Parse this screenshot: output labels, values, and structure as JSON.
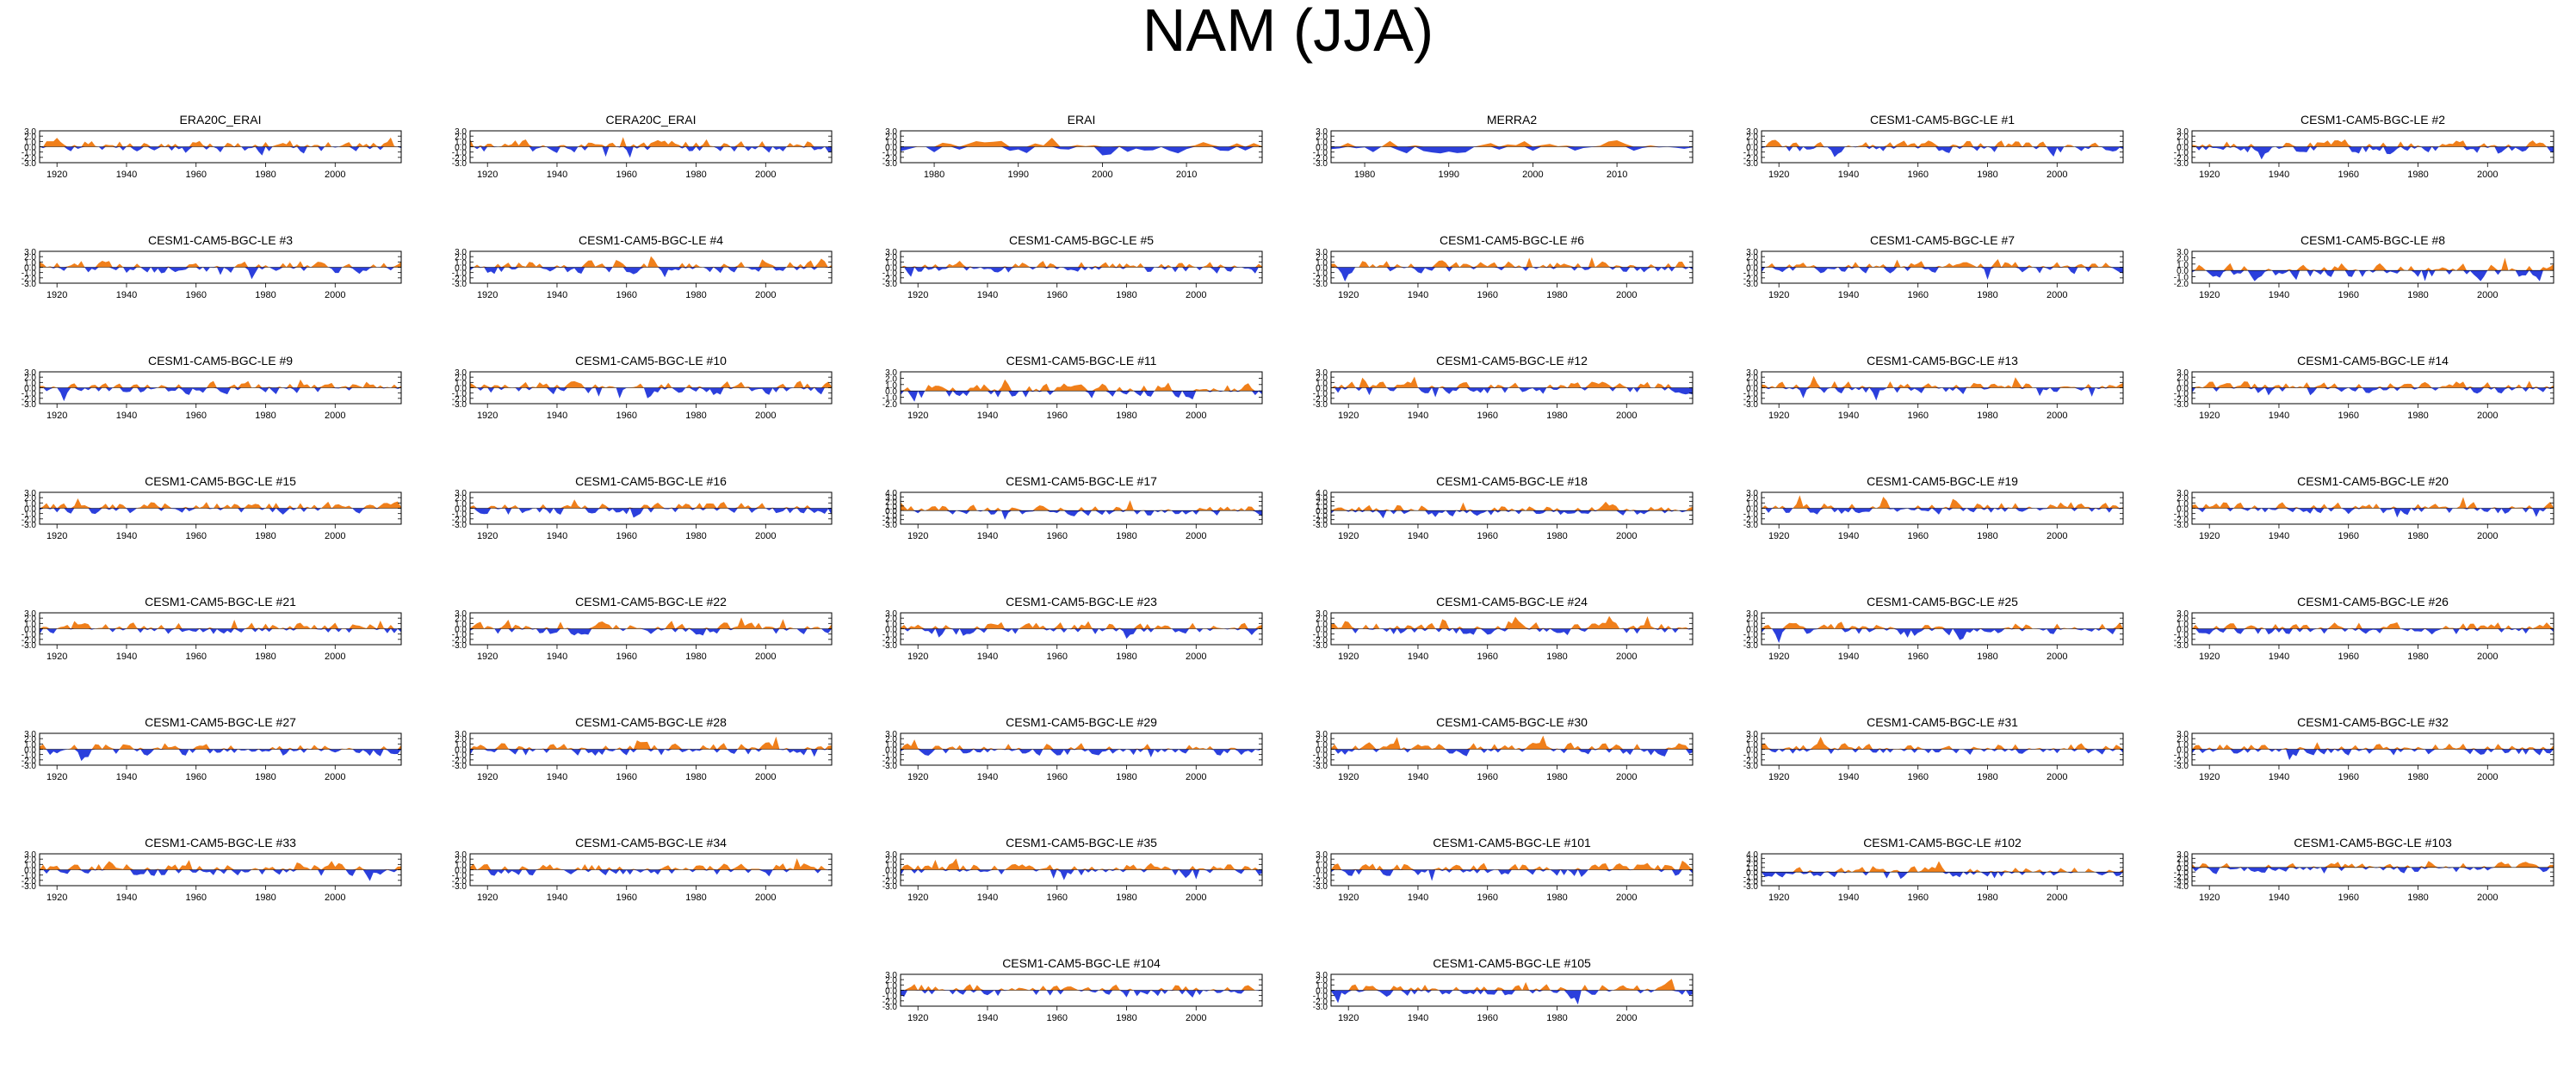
{
  "title": "NAM (JJA)",
  "colors": {
    "positive": "#f07f1a",
    "negative": "#2b3fdc",
    "frame": "#000000"
  },
  "panels": [
    {
      "title": "ERA20C_ERAI",
      "xticks": [
        "1920",
        "1940",
        "1960",
        "1980",
        "2000"
      ],
      "yticks": [
        "3.0",
        "2.0",
        "1.0",
        "0.0",
        "-1.0",
        "-2.0",
        "-3.0"
      ],
      "x_range": [
        1915,
        2019
      ],
      "ylim": [
        -3,
        3
      ],
      "seed": 11
    },
    {
      "title": "CERA20C_ERAI",
      "xticks": [
        "1920",
        "1940",
        "1960",
        "1980",
        "2000"
      ],
      "yticks": [
        "3.0",
        "2.0",
        "1.0",
        "0.0",
        "-1.0",
        "-2.0",
        "-3.0"
      ],
      "x_range": [
        1915,
        2019
      ],
      "ylim": [
        -3,
        3
      ],
      "seed": 12
    },
    {
      "title": "ERAI",
      "xticks": [
        "1980",
        "1990",
        "2000",
        "2010"
      ],
      "yticks": [
        "3.0",
        "2.0",
        "1.0",
        "0.0",
        "-1.0",
        "-2.0",
        "-3.0"
      ],
      "x_range": [
        1976,
        2019
      ],
      "ylim": [
        -3,
        3
      ],
      "seed": 13
    },
    {
      "title": "MERRA2",
      "xticks": [
        "1980",
        "1990",
        "2000",
        "2010"
      ],
      "yticks": [
        "3.0",
        "2.0",
        "1.0",
        "0.0",
        "-1.0",
        "-2.0",
        "-3.0"
      ],
      "x_range": [
        1976,
        2019
      ],
      "ylim": [
        -3,
        3
      ],
      "seed": 14
    },
    {
      "title": "CESM1-CAM5-BGC-LE #1",
      "xticks": [
        "1920",
        "1940",
        "1960",
        "1980",
        "2000"
      ],
      "yticks": [
        "3.0",
        "2.0",
        "1.0",
        "0.0",
        "-1.0",
        "-2.0",
        "-3.0"
      ],
      "x_range": [
        1915,
        2019
      ],
      "ylim": [
        -3,
        3
      ],
      "seed": 21
    },
    {
      "title": "CESM1-CAM5-BGC-LE #2",
      "xticks": [
        "1920",
        "1940",
        "1960",
        "1980",
        "2000"
      ],
      "yticks": [
        "3.0",
        "2.0",
        "1.0",
        "0.0",
        "-1.0",
        "-2.0",
        "-3.0"
      ],
      "x_range": [
        1915,
        2019
      ],
      "ylim": [
        -3,
        3
      ],
      "seed": 22
    },
    {
      "title": "CESM1-CAM5-BGC-LE #3",
      "xticks": [
        "1920",
        "1940",
        "1960",
        "1980",
        "2000"
      ],
      "yticks": [
        "3.0",
        "2.0",
        "1.0",
        "0.0",
        "-1.0",
        "-2.0",
        "-3.0"
      ],
      "x_range": [
        1915,
        2019
      ],
      "ylim": [
        -3,
        3
      ],
      "seed": 23
    },
    {
      "title": "CESM1-CAM5-BGC-LE #4",
      "xticks": [
        "1920",
        "1940",
        "1960",
        "1980",
        "2000"
      ],
      "yticks": [
        "3.0",
        "2.0",
        "1.0",
        "0.0",
        "-1.0",
        "-2.0",
        "-3.0"
      ],
      "x_range": [
        1915,
        2019
      ],
      "ylim": [
        -3,
        3
      ],
      "seed": 24
    },
    {
      "title": "CESM1-CAM5-BGC-LE #5",
      "xticks": [
        "1920",
        "1940",
        "1960",
        "1980",
        "2000"
      ],
      "yticks": [
        "3.0",
        "2.0",
        "1.0",
        "0.0",
        "-1.0",
        "-2.0",
        "-3.0"
      ],
      "x_range": [
        1915,
        2019
      ],
      "ylim": [
        -3,
        3
      ],
      "seed": 25
    },
    {
      "title": "CESM1-CAM5-BGC-LE #6",
      "xticks": [
        "1920",
        "1940",
        "1960",
        "1980",
        "2000"
      ],
      "yticks": [
        "3.0",
        "2.0",
        "1.0",
        "0.0",
        "-1.0",
        "-2.0",
        "-3.0"
      ],
      "x_range": [
        1915,
        2019
      ],
      "ylim": [
        -3,
        3
      ],
      "seed": 26
    },
    {
      "title": "CESM1-CAM5-BGC-LE #7",
      "xticks": [
        "1920",
        "1940",
        "1960",
        "1980",
        "2000"
      ],
      "yticks": [
        "3.0",
        "2.0",
        "1.0",
        "0.0",
        "-1.0",
        "-2.0",
        "-3.0"
      ],
      "x_range": [
        1915,
        2019
      ],
      "ylim": [
        -3,
        3
      ],
      "seed": 27
    },
    {
      "title": "CESM1-CAM5-BGC-LE #8",
      "xticks": [
        "1920",
        "1940",
        "1960",
        "1980",
        "2000"
      ],
      "yticks": [
        "3.0",
        "2.0",
        "1.0",
        "0.0",
        "-1.0",
        "-2.0"
      ],
      "x_range": [
        1915,
        2019
      ],
      "ylim": [
        -2,
        3
      ],
      "seed": 28
    },
    {
      "title": "CESM1-CAM5-BGC-LE #9",
      "xticks": [
        "1920",
        "1940",
        "1960",
        "1980",
        "2000"
      ],
      "yticks": [
        "3.0",
        "2.0",
        "1.0",
        "0.0",
        "-1.0",
        "-2.0",
        "-3.0"
      ],
      "x_range": [
        1915,
        2019
      ],
      "ylim": [
        -3,
        3
      ],
      "seed": 29
    },
    {
      "title": "CESM1-CAM5-BGC-LE #10",
      "xticks": [
        "1920",
        "1940",
        "1960",
        "1980",
        "2000"
      ],
      "yticks": [
        "3.0",
        "2.0",
        "1.0",
        "0.0",
        "-1.0",
        "-2.0",
        "-3.0"
      ],
      "x_range": [
        1915,
        2019
      ],
      "ylim": [
        -3,
        3
      ],
      "seed": 30
    },
    {
      "title": "CESM1-CAM5-BGC-LE #11",
      "xticks": [
        "1920",
        "1940",
        "1960",
        "1980",
        "2000"
      ],
      "yticks": [
        "3.0",
        "2.0",
        "1.0",
        "0.0",
        "-1.0",
        "-2.0"
      ],
      "x_range": [
        1915,
        2019
      ],
      "ylim": [
        -2,
        3
      ],
      "seed": 31
    },
    {
      "title": "CESM1-CAM5-BGC-LE #12",
      "xticks": [
        "1920",
        "1940",
        "1960",
        "1980",
        "2000"
      ],
      "yticks": [
        "3.0",
        "2.0",
        "1.0",
        "0.0",
        "-1.0",
        "-2.0",
        "-3.0"
      ],
      "x_range": [
        1915,
        2019
      ],
      "ylim": [
        -3,
        3
      ],
      "seed": 32
    },
    {
      "title": "CESM1-CAM5-BGC-LE #13",
      "xticks": [
        "1920",
        "1940",
        "1960",
        "1980",
        "2000"
      ],
      "yticks": [
        "3.0",
        "2.0",
        "1.0",
        "0.0",
        "-1.0",
        "-2.0",
        "-3.0"
      ],
      "x_range": [
        1915,
        2019
      ],
      "ylim": [
        -3,
        3
      ],
      "seed": 33
    },
    {
      "title": "CESM1-CAM5-BGC-LE #14",
      "xticks": [
        "1920",
        "1940",
        "1960",
        "1980",
        "2000"
      ],
      "yticks": [
        "3.0",
        "2.0",
        "1.0",
        "0.0",
        "-1.0",
        "-2.0",
        "-3.0"
      ],
      "x_range": [
        1915,
        2019
      ],
      "ylim": [
        -3,
        3
      ],
      "seed": 34
    },
    {
      "title": "CESM1-CAM5-BGC-LE #15",
      "xticks": [
        "1920",
        "1940",
        "1960",
        "1980",
        "2000"
      ],
      "yticks": [
        "3.0",
        "2.0",
        "1.0",
        "0.0",
        "-1.0",
        "-2.0",
        "-3.0"
      ],
      "x_range": [
        1915,
        2019
      ],
      "ylim": [
        -3,
        3
      ],
      "seed": 35
    },
    {
      "title": "CESM1-CAM5-BGC-LE #16",
      "xticks": [
        "1920",
        "1940",
        "1960",
        "1980",
        "2000"
      ],
      "yticks": [
        "3.0",
        "2.0",
        "1.0",
        "0.0",
        "-1.0",
        "-2.0",
        "-3.0"
      ],
      "x_range": [
        1915,
        2019
      ],
      "ylim": [
        -3,
        3
      ],
      "seed": 36
    },
    {
      "title": "CESM1-CAM5-BGC-LE #17",
      "xticks": [
        "1920",
        "1940",
        "1960",
        "1980",
        "2000"
      ],
      "yticks": [
        "4.0",
        "3.0",
        "2.0",
        "1.0",
        "0.0",
        "-1.0",
        "-2.0",
        "-3.0"
      ],
      "x_range": [
        1915,
        2019
      ],
      "ylim": [
        -3,
        4
      ],
      "seed": 37
    },
    {
      "title": "CESM1-CAM5-BGC-LE #18",
      "xticks": [
        "1920",
        "1940",
        "1960",
        "1980",
        "2000"
      ],
      "yticks": [
        "4.0",
        "3.0",
        "2.0",
        "1.0",
        "0.0",
        "-1.0",
        "-2.0",
        "-3.0"
      ],
      "x_range": [
        1915,
        2019
      ],
      "ylim": [
        -3,
        4
      ],
      "seed": 38
    },
    {
      "title": "CESM1-CAM5-BGC-LE #19",
      "xticks": [
        "1920",
        "1940",
        "1960",
        "1980",
        "2000"
      ],
      "yticks": [
        "3.0",
        "2.0",
        "1.0",
        "0.0",
        "-1.0",
        "-2.0",
        "-3.0"
      ],
      "x_range": [
        1915,
        2019
      ],
      "ylim": [
        -3,
        3
      ],
      "seed": 39
    },
    {
      "title": "CESM1-CAM5-BGC-LE #20",
      "xticks": [
        "1920",
        "1940",
        "1960",
        "1980",
        "2000"
      ],
      "yticks": [
        "3.0",
        "2.0",
        "1.0",
        "0.0",
        "-1.0",
        "-2.0",
        "-3.0"
      ],
      "x_range": [
        1915,
        2019
      ],
      "ylim": [
        -3,
        3
      ],
      "seed": 40
    },
    {
      "title": "CESM1-CAM5-BGC-LE #21",
      "xticks": [
        "1920",
        "1940",
        "1960",
        "1980",
        "2000"
      ],
      "yticks": [
        "3.0",
        "2.0",
        "1.0",
        "0.0",
        "-1.0",
        "-2.0",
        "-3.0"
      ],
      "x_range": [
        1915,
        2019
      ],
      "ylim": [
        -3,
        3
      ],
      "seed": 41
    },
    {
      "title": "CESM1-CAM5-BGC-LE #22",
      "xticks": [
        "1920",
        "1940",
        "1960",
        "1980",
        "2000"
      ],
      "yticks": [
        "3.0",
        "2.0",
        "1.0",
        "0.0",
        "-1.0",
        "-2.0",
        "-3.0"
      ],
      "x_range": [
        1915,
        2019
      ],
      "ylim": [
        -3,
        3
      ],
      "seed": 42
    },
    {
      "title": "CESM1-CAM5-BGC-LE #23",
      "xticks": [
        "1920",
        "1940",
        "1960",
        "1980",
        "2000"
      ],
      "yticks": [
        "3.0",
        "2.0",
        "1.0",
        "0.0",
        "-1.0",
        "-2.0",
        "-3.0"
      ],
      "x_range": [
        1915,
        2019
      ],
      "ylim": [
        -3,
        3
      ],
      "seed": 43
    },
    {
      "title": "CESM1-CAM5-BGC-LE #24",
      "xticks": [
        "1920",
        "1940",
        "1960",
        "1980",
        "2000"
      ],
      "yticks": [
        "3.0",
        "2.0",
        "1.0",
        "0.0",
        "-1.0",
        "-2.0",
        "-3.0"
      ],
      "x_range": [
        1915,
        2019
      ],
      "ylim": [
        -3,
        3
      ],
      "seed": 44
    },
    {
      "title": "CESM1-CAM5-BGC-LE #25",
      "xticks": [
        "1920",
        "1940",
        "1960",
        "1980",
        "2000"
      ],
      "yticks": [
        "3.0",
        "2.0",
        "1.0",
        "0.0",
        "-1.0",
        "-2.0",
        "-3.0"
      ],
      "x_range": [
        1915,
        2019
      ],
      "ylim": [
        -3,
        3
      ],
      "seed": 45
    },
    {
      "title": "CESM1-CAM5-BGC-LE #26",
      "xticks": [
        "1920",
        "1940",
        "1960",
        "1980",
        "2000"
      ],
      "yticks": [
        "3.0",
        "2.0",
        "1.0",
        "0.0",
        "-1.0",
        "-2.0",
        "-3.0"
      ],
      "x_range": [
        1915,
        2019
      ],
      "ylim": [
        -3,
        3
      ],
      "seed": 46
    },
    {
      "title": "CESM1-CAM5-BGC-LE #27",
      "xticks": [
        "1920",
        "1940",
        "1960",
        "1980",
        "2000"
      ],
      "yticks": [
        "3.0",
        "2.0",
        "1.0",
        "0.0",
        "-1.0",
        "-2.0",
        "-3.0"
      ],
      "x_range": [
        1915,
        2019
      ],
      "ylim": [
        -3,
        3
      ],
      "seed": 47
    },
    {
      "title": "CESM1-CAM5-BGC-LE #28",
      "xticks": [
        "1920",
        "1940",
        "1960",
        "1980",
        "2000"
      ],
      "yticks": [
        "3.0",
        "2.0",
        "1.0",
        "0.0",
        "-1.0",
        "-2.0",
        "-3.0"
      ],
      "x_range": [
        1915,
        2019
      ],
      "ylim": [
        -3,
        3
      ],
      "seed": 48
    },
    {
      "title": "CESM1-CAM5-BGC-LE #29",
      "xticks": [
        "1920",
        "1940",
        "1960",
        "1980",
        "2000"
      ],
      "yticks": [
        "3.0",
        "2.0",
        "1.0",
        "0.0",
        "-1.0",
        "-2.0",
        "-3.0"
      ],
      "x_range": [
        1915,
        2019
      ],
      "ylim": [
        -3,
        3
      ],
      "seed": 49
    },
    {
      "title": "CESM1-CAM5-BGC-LE #30",
      "xticks": [
        "1920",
        "1940",
        "1960",
        "1980",
        "2000"
      ],
      "yticks": [
        "3.0",
        "2.0",
        "1.0",
        "0.0",
        "-1.0",
        "-2.0",
        "-3.0"
      ],
      "x_range": [
        1915,
        2019
      ],
      "ylim": [
        -3,
        3
      ],
      "seed": 50
    },
    {
      "title": "CESM1-CAM5-BGC-LE #31",
      "xticks": [
        "1920",
        "1940",
        "1960",
        "1980",
        "2000"
      ],
      "yticks": [
        "3.0",
        "2.0",
        "1.0",
        "0.0",
        "-1.0",
        "-2.0",
        "-3.0"
      ],
      "x_range": [
        1915,
        2019
      ],
      "ylim": [
        -3,
        3
      ],
      "seed": 51
    },
    {
      "title": "CESM1-CAM5-BGC-LE #32",
      "xticks": [
        "1920",
        "1940",
        "1960",
        "1980",
        "2000"
      ],
      "yticks": [
        "3.0",
        "2.0",
        "1.0",
        "0.0",
        "-1.0",
        "-2.0",
        "-3.0"
      ],
      "x_range": [
        1915,
        2019
      ],
      "ylim": [
        -3,
        3
      ],
      "seed": 52
    },
    {
      "title": "CESM1-CAM5-BGC-LE #33",
      "xticks": [
        "1920",
        "1940",
        "1960",
        "1980",
        "2000"
      ],
      "yticks": [
        "3.0",
        "2.0",
        "1.0",
        "0.0",
        "-1.0",
        "-2.0",
        "-3.0"
      ],
      "x_range": [
        1915,
        2019
      ],
      "ylim": [
        -3,
        3
      ],
      "seed": 53
    },
    {
      "title": "CESM1-CAM5-BGC-LE #34",
      "xticks": [
        "1920",
        "1940",
        "1960",
        "1980",
        "2000"
      ],
      "yticks": [
        "3.0",
        "2.0",
        "1.0",
        "0.0",
        "-1.0",
        "-2.0",
        "-3.0"
      ],
      "x_range": [
        1915,
        2019
      ],
      "ylim": [
        -3,
        3
      ],
      "seed": 54
    },
    {
      "title": "CESM1-CAM5-BGC-LE #35",
      "xticks": [
        "1920",
        "1940",
        "1960",
        "1980",
        "2000"
      ],
      "yticks": [
        "3.0",
        "2.0",
        "1.0",
        "0.0",
        "-1.0",
        "-2.0",
        "-3.0"
      ],
      "x_range": [
        1915,
        2019
      ],
      "ylim": [
        -3,
        3
      ],
      "seed": 55
    },
    {
      "title": "CESM1-CAM5-BGC-LE #101",
      "xticks": [
        "1920",
        "1940",
        "1960",
        "1980",
        "2000"
      ],
      "yticks": [
        "3.0",
        "2.0",
        "1.0",
        "0.0",
        "-1.0",
        "-2.0",
        "-3.0"
      ],
      "x_range": [
        1915,
        2019
      ],
      "ylim": [
        -3,
        3
      ],
      "seed": 56
    },
    {
      "title": "CESM1-CAM5-BGC-LE #102",
      "xticks": [
        "1920",
        "1940",
        "1960",
        "1980",
        "2000"
      ],
      "yticks": [
        "4.0",
        "3.0",
        "2.0",
        "1.0",
        "0.0",
        "-1.0",
        "-2.0",
        "-3.0"
      ],
      "x_range": [
        1915,
        2019
      ],
      "ylim": [
        -3,
        4
      ],
      "seed": 57
    },
    {
      "title": "CESM1-CAM5-BGC-LE #103",
      "xticks": [
        "1920",
        "1940",
        "1960",
        "1980",
        "2000"
      ],
      "yticks": [
        "3.0",
        "2.0",
        "1.0",
        "0.0",
        "-1.0",
        "-2.0",
        "-3.0",
        "-4.0"
      ],
      "x_range": [
        1915,
        2019
      ],
      "ylim": [
        -4,
        3
      ],
      "seed": 58
    },
    {
      "title": "CESM1-CAM5-BGC-LE #104",
      "xticks": [
        "1920",
        "1940",
        "1960",
        "1980",
        "2000"
      ],
      "yticks": [
        "3.0",
        "2.0",
        "1.0",
        "0.0",
        "-1.0",
        "-2.0",
        "-3.0"
      ],
      "x_range": [
        1915,
        2019
      ],
      "ylim": [
        -3,
        3
      ],
      "seed": 59
    },
    {
      "title": "CESM1-CAM5-BGC-LE #105",
      "xticks": [
        "1920",
        "1940",
        "1960",
        "1980",
        "2000"
      ],
      "yticks": [
        "3.0",
        "2.0",
        "1.0",
        "0.0",
        "-1.0",
        "-2.0",
        "-3.0"
      ],
      "x_range": [
        1915,
        2019
      ],
      "ylim": [
        -3,
        3
      ],
      "seed": 60
    }
  ],
  "chart_data": {
    "type": "area",
    "title": "NAM (JJA)",
    "ylim": [
      -3,
      3
    ],
    "grid": false
  }
}
